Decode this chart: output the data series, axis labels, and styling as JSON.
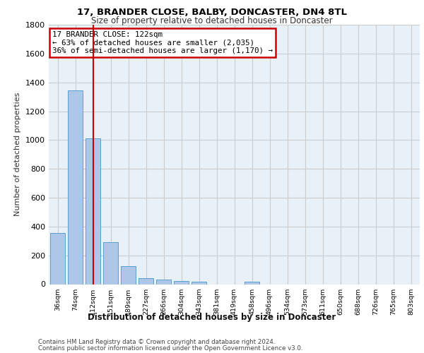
{
  "title1": "17, BRANDER CLOSE, BALBY, DONCASTER, DN4 8TL",
  "title2": "Size of property relative to detached houses in Doncaster",
  "xlabel": "Distribution of detached houses by size in Doncaster",
  "ylabel": "Number of detached properties",
  "categories": [
    "36sqm",
    "74sqm",
    "112sqm",
    "151sqm",
    "189sqm",
    "227sqm",
    "266sqm",
    "304sqm",
    "343sqm",
    "381sqm",
    "419sqm",
    "458sqm",
    "496sqm",
    "534sqm",
    "573sqm",
    "611sqm",
    "650sqm",
    "688sqm",
    "726sqm",
    "765sqm",
    "803sqm"
  ],
  "values": [
    355,
    1345,
    1010,
    290,
    125,
    40,
    33,
    22,
    17,
    0,
    0,
    18,
    0,
    0,
    0,
    0,
    0,
    0,
    0,
    0,
    0
  ],
  "bar_color": "#aec6e8",
  "bar_edgecolor": "#5a9fd4",
  "annotation_title": "17 BRANDER CLOSE: 122sqm",
  "annotation_line1": "← 63% of detached houses are smaller (2,035)",
  "annotation_line2": "36% of semi-detached houses are larger (1,170) →",
  "annotation_box_color": "#ffffff",
  "annotation_box_edgecolor": "#cc0000",
  "vline_color": "#cc0000",
  "vline_x_index": 2,
  "ylim": [
    0,
    1800
  ],
  "yticks": [
    0,
    200,
    400,
    600,
    800,
    1000,
    1200,
    1400,
    1600,
    1800
  ],
  "grid_color": "#cccccc",
  "bg_color": "#e8f0f8",
  "footer1": "Contains HM Land Registry data © Crown copyright and database right 2024.",
  "footer2": "Contains public sector information licensed under the Open Government Licence v3.0."
}
